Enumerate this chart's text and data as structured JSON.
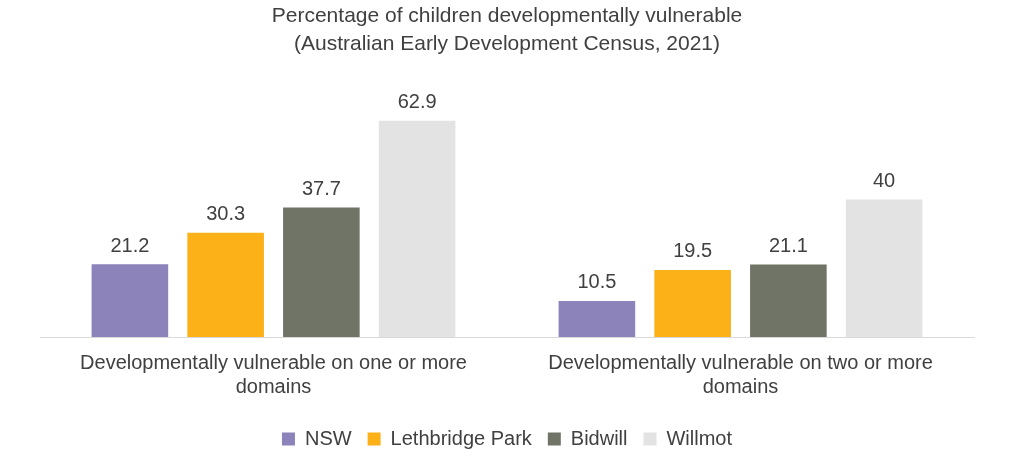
{
  "chart_data": {
    "type": "bar",
    "title": "Percentage of children developmentally vulnerable",
    "subtitle": "(Australian Early Development Census, 2021)",
    "categories": [
      "Developmentally vulnerable on one or more domains",
      "Developmentally vulnerable on two or more domains"
    ],
    "series": [
      {
        "name": "NSW",
        "color": "#8b83b9",
        "values": [
          21.2,
          10.5
        ]
      },
      {
        "name": "Lethbridge Park",
        "color": "#fbb117",
        "values": [
          30.3,
          19.5
        ]
      },
      {
        "name": "Bidwill",
        "color": "#6f7467",
        "values": [
          37.7,
          21.1
        ]
      },
      {
        "name": "Willmot",
        "color": "#e3e3e3",
        "values": [
          62.9,
          40
        ]
      }
    ],
    "data_labels": true,
    "legend": "bottom",
    "grid": false
  }
}
